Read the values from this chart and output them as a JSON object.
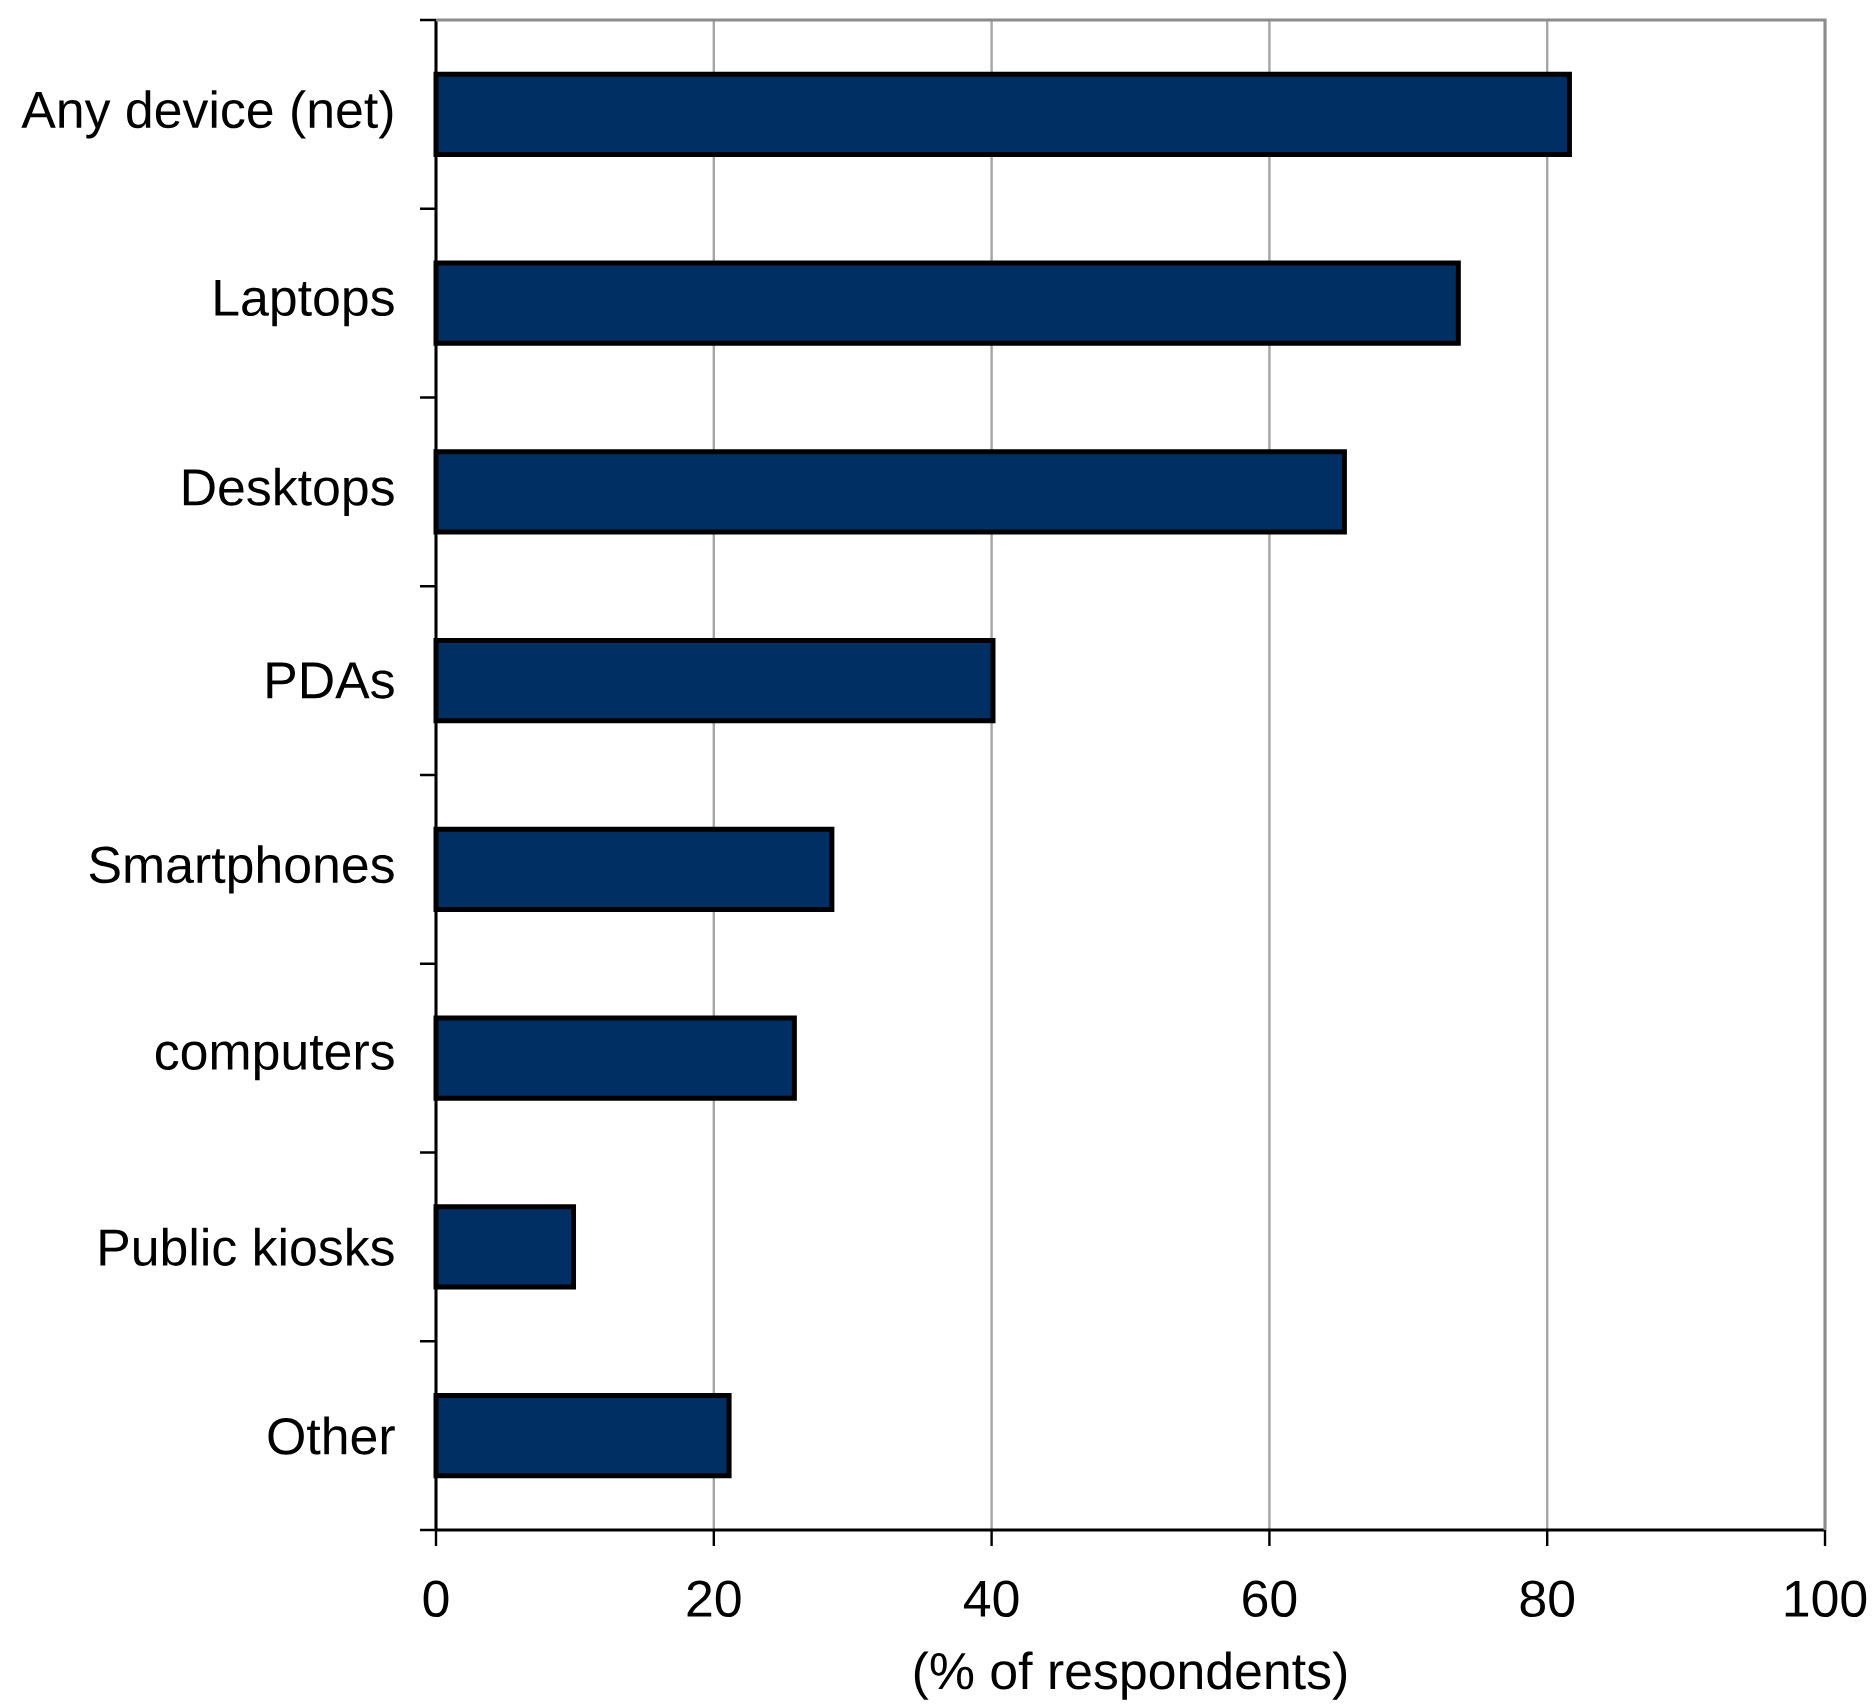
{
  "chart_data": {
    "type": "bar",
    "orientation": "horizontal",
    "categories": [
      "Any device (net)",
      "Laptops",
      "Desktops",
      "PDAs",
      "Smartphones",
      "computers",
      "Public kiosks",
      "Other"
    ],
    "values": [
      81.6,
      73.6,
      65.4,
      40.1,
      28.5,
      25.8,
      9.9,
      21.1
    ],
    "color": "#003063",
    "xlim": [
      0,
      100
    ],
    "xticks": [
      0,
      20,
      40,
      60,
      80,
      100
    ],
    "xlabel": "(% of respondents)",
    "grid": "x"
  }
}
